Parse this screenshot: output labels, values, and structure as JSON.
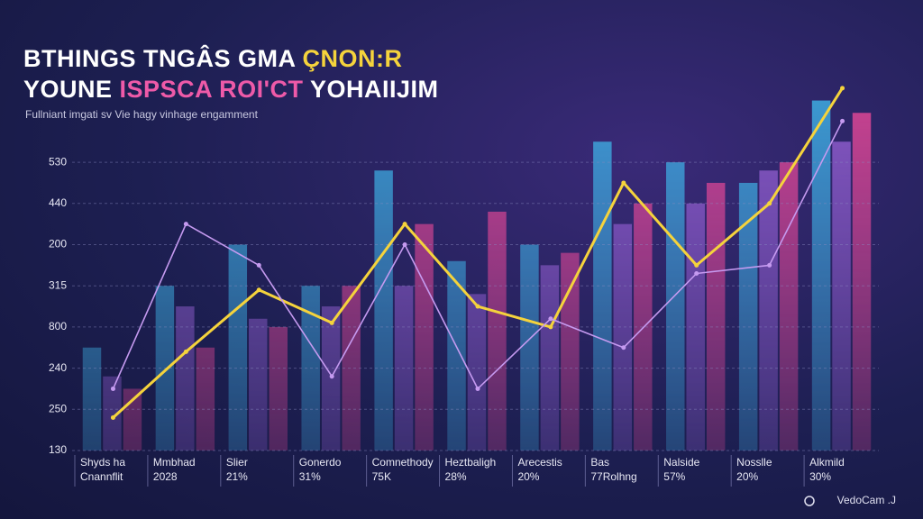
{
  "chart_data": {
    "type": "bar",
    "title": [
      [
        "BTHINGS TNGÂS GMA",
        "ÇNON:R"
      ],
      [
        "YOUNE",
        "ISPSCA ROI'CT",
        "YOHAIIJIM"
      ]
    ],
    "subtitle": "Fullniant imgati sv Vie hagy vinhage engamment",
    "categories": [
      "Shyds ha",
      "Mmbhad",
      "Slier",
      "Gonerdo",
      "Comnethody",
      "Heztbaligh",
      "Arecestis",
      "Bas",
      "Nalside",
      "Nosslle",
      "Alkmild"
    ],
    "category_notes": [
      "Cnannflit",
      "2028",
      "21%",
      "31%",
      "75K",
      "28%",
      "20%",
      "77Rolhng",
      "57%",
      "20%",
      "30%"
    ],
    "series": [
      {
        "color": "#3fb6ea",
        "values": [
          2.5,
          4.0,
          5.0,
          4.0,
          6.8,
          4.6,
          5.0,
          7.5,
          7.0,
          6.5,
          8.5
        ]
      },
      {
        "color": "#9a63d8",
        "values": [
          1.8,
          3.5,
          3.2,
          3.5,
          4.0,
          3.8,
          4.5,
          5.5,
          6.0,
          6.8,
          7.5
        ]
      },
      {
        "color": "#ee4a9a",
        "values": [
          1.5,
          2.5,
          3.0,
          4.0,
          5.5,
          5.8,
          4.8,
          6.0,
          6.5,
          7.0,
          8.2
        ]
      }
    ],
    "lines": [
      {
        "color": "#f5d33c",
        "values": [
          0.8,
          2.4,
          3.9,
          3.1,
          5.5,
          3.5,
          3.0,
          6.5,
          4.5,
          6.0,
          8.8
        ]
      },
      {
        "color": "#c59af0",
        "values": [
          1.5,
          5.5,
          4.5,
          1.8,
          5.0,
          1.5,
          3.2,
          2.5,
          4.3,
          4.5,
          8.0
        ]
      }
    ],
    "ylim": [
      0,
      10
    ],
    "yticks": [
      {
        "value": 0,
        "label": "130"
      },
      {
        "value": 1,
        "label": "250"
      },
      {
        "value": 2,
        "label": "240"
      },
      {
        "value": 3,
        "label": "800"
      },
      {
        "value": 4,
        "label": "315"
      },
      {
        "value": 5,
        "label": "200"
      },
      {
        "value": 6,
        "label": "440"
      },
      {
        "value": 7,
        "label": "530"
      }
    ],
    "grid": true,
    "footer": "VedoCam .J"
  }
}
